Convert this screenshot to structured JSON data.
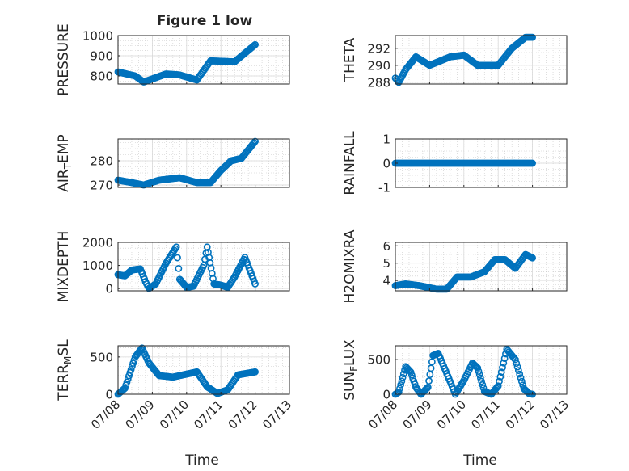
{
  "figure": {
    "title": "Figure 1 low"
  },
  "colors": {
    "series": "#0072BD",
    "axis": "#262626",
    "grid": "#c8c8c8",
    "background": "#ffffff"
  },
  "x_axis": {
    "label": "Time",
    "range": [
      "07/08",
      "07/13"
    ],
    "tick_labels": [
      "07/08",
      "07/09",
      "07/10",
      "07/11",
      "07/12",
      "07/13"
    ],
    "tick_rotation_deg": -45
  },
  "chart_data": [
    {
      "type": "scatter",
      "ylabel": "PRESSURE",
      "ylim": [
        760,
        1000
      ],
      "yticks": [
        800,
        900,
        1000
      ],
      "grid": "on",
      "minor_grid": "on",
      "marker": "open-circle",
      "x_dates": [
        "07/08",
        "07/08",
        "07/09",
        "07/09",
        "07/10",
        "07/10",
        "07/11",
        "07/11",
        "07/12"
      ],
      "x": [
        0.0,
        0.5,
        0.75,
        1.4,
        1.8,
        2.3,
        2.7,
        3.4,
        4.0
      ],
      "y": [
        820,
        800,
        770,
        810,
        805,
        780,
        875,
        870,
        955
      ]
    },
    {
      "type": "scatter",
      "ylabel": "THETA",
      "ylim": [
        287.8,
        293.5
      ],
      "yticks": [
        288,
        290,
        292
      ],
      "grid": "on",
      "minor_grid": "on",
      "marker": "open-circle",
      "x": [
        0.0,
        0.1,
        0.3,
        0.6,
        1.0,
        1.3,
        1.6,
        2.0,
        2.4,
        3.0,
        3.4,
        3.8,
        4.0
      ],
      "y": [
        288.5,
        288.0,
        289.5,
        291.0,
        290.0,
        290.5,
        291.0,
        291.2,
        290.0,
        290.0,
        292.0,
        293.3,
        293.3
      ]
    },
    {
      "type": "scatter",
      "ylabel": "AIR_TEMP",
      "ylim": [
        269,
        289
      ],
      "yticks": [
        270,
        280
      ],
      "grid": "on",
      "minor_grid": "on",
      "marker": "open-circle",
      "x": [
        0.0,
        0.4,
        0.75,
        1.2,
        1.8,
        2.3,
        2.7,
        3.0,
        3.3,
        3.6,
        4.0
      ],
      "y": [
        272,
        271,
        270,
        272,
        273,
        271,
        271,
        276,
        280,
        281,
        288
      ]
    },
    {
      "type": "scatter",
      "ylabel": "RAINFALL",
      "ylim": [
        -1,
        1
      ],
      "yticks": [
        -1,
        0,
        1
      ],
      "grid": "on",
      "minor_grid": "on",
      "marker": "open-circle",
      "x": [
        0.0,
        0.5,
        1.0,
        1.5,
        2.0,
        2.5,
        3.0,
        3.5,
        4.0
      ],
      "y": [
        0,
        0,
        0,
        0,
        0,
        0,
        0,
        0,
        0
      ]
    },
    {
      "type": "scatter",
      "ylabel": "MIXDEPTH",
      "ylim": [
        -100,
        2000
      ],
      "yticks": [
        0,
        1000,
        2000
      ],
      "grid": "on",
      "minor_grid": "on",
      "marker": "open-circle",
      "x": [
        0.0,
        0.2,
        0.4,
        0.65,
        0.8,
        0.9,
        1.1,
        1.4,
        1.7,
        1.8,
        2.0,
        2.2,
        2.5,
        2.6,
        2.8,
        3.0,
        3.2,
        3.4,
        3.7,
        4.0
      ],
      "y": [
        600,
        550,
        800,
        850,
        300,
        0,
        200,
        1100,
        1800,
        400,
        50,
        100,
        1000,
        1800,
        200,
        150,
        50,
        500,
        1350,
        200
      ]
    },
    {
      "type": "scatter",
      "ylabel": "H2OMIXRA",
      "ylim": [
        3.4,
        6.2
      ],
      "yticks": [
        4,
        5,
        6
      ],
      "grid": "on",
      "minor_grid": "on",
      "marker": "open-circle",
      "x": [
        0.0,
        0.3,
        0.7,
        1.2,
        1.5,
        1.8,
        2.2,
        2.6,
        2.9,
        3.2,
        3.5,
        3.8,
        4.0
      ],
      "y": [
        3.7,
        3.8,
        3.7,
        3.5,
        3.5,
        4.2,
        4.2,
        4.5,
        5.2,
        5.2,
        4.7,
        5.5,
        5.3
      ]
    },
    {
      "type": "scatter",
      "ylabel": "TERR_MSL",
      "ylim": [
        0,
        650
      ],
      "yticks": [
        0,
        500
      ],
      "grid": "on",
      "minor_grid": "on",
      "marker": "open-circle",
      "x": [
        0.0,
        0.2,
        0.5,
        0.7,
        0.9,
        1.2,
        1.6,
        2.0,
        2.3,
        2.6,
        2.9,
        3.2,
        3.5,
        4.0
      ],
      "y": [
        0,
        80,
        500,
        620,
        420,
        250,
        230,
        270,
        300,
        100,
        10,
        60,
        260,
        300
      ]
    },
    {
      "type": "scatter",
      "ylabel": "SUN_FLUX",
      "ylim": [
        0,
        700
      ],
      "yticks": [
        0,
        500
      ],
      "grid": "on",
      "minor_grid": "on",
      "marker": "open-circle",
      "x": [
        0.0,
        0.1,
        0.3,
        0.45,
        0.6,
        0.75,
        0.95,
        1.1,
        1.25,
        1.5,
        1.75,
        2.0,
        2.25,
        2.4,
        2.6,
        2.8,
        3.0,
        3.25,
        3.5,
        3.75,
        3.9,
        4.0
      ],
      "y": [
        0,
        30,
        400,
        320,
        100,
        0,
        100,
        560,
        590,
        300,
        0,
        200,
        450,
        380,
        40,
        0,
        120,
        650,
        500,
        80,
        10,
        0
      ]
    }
  ]
}
